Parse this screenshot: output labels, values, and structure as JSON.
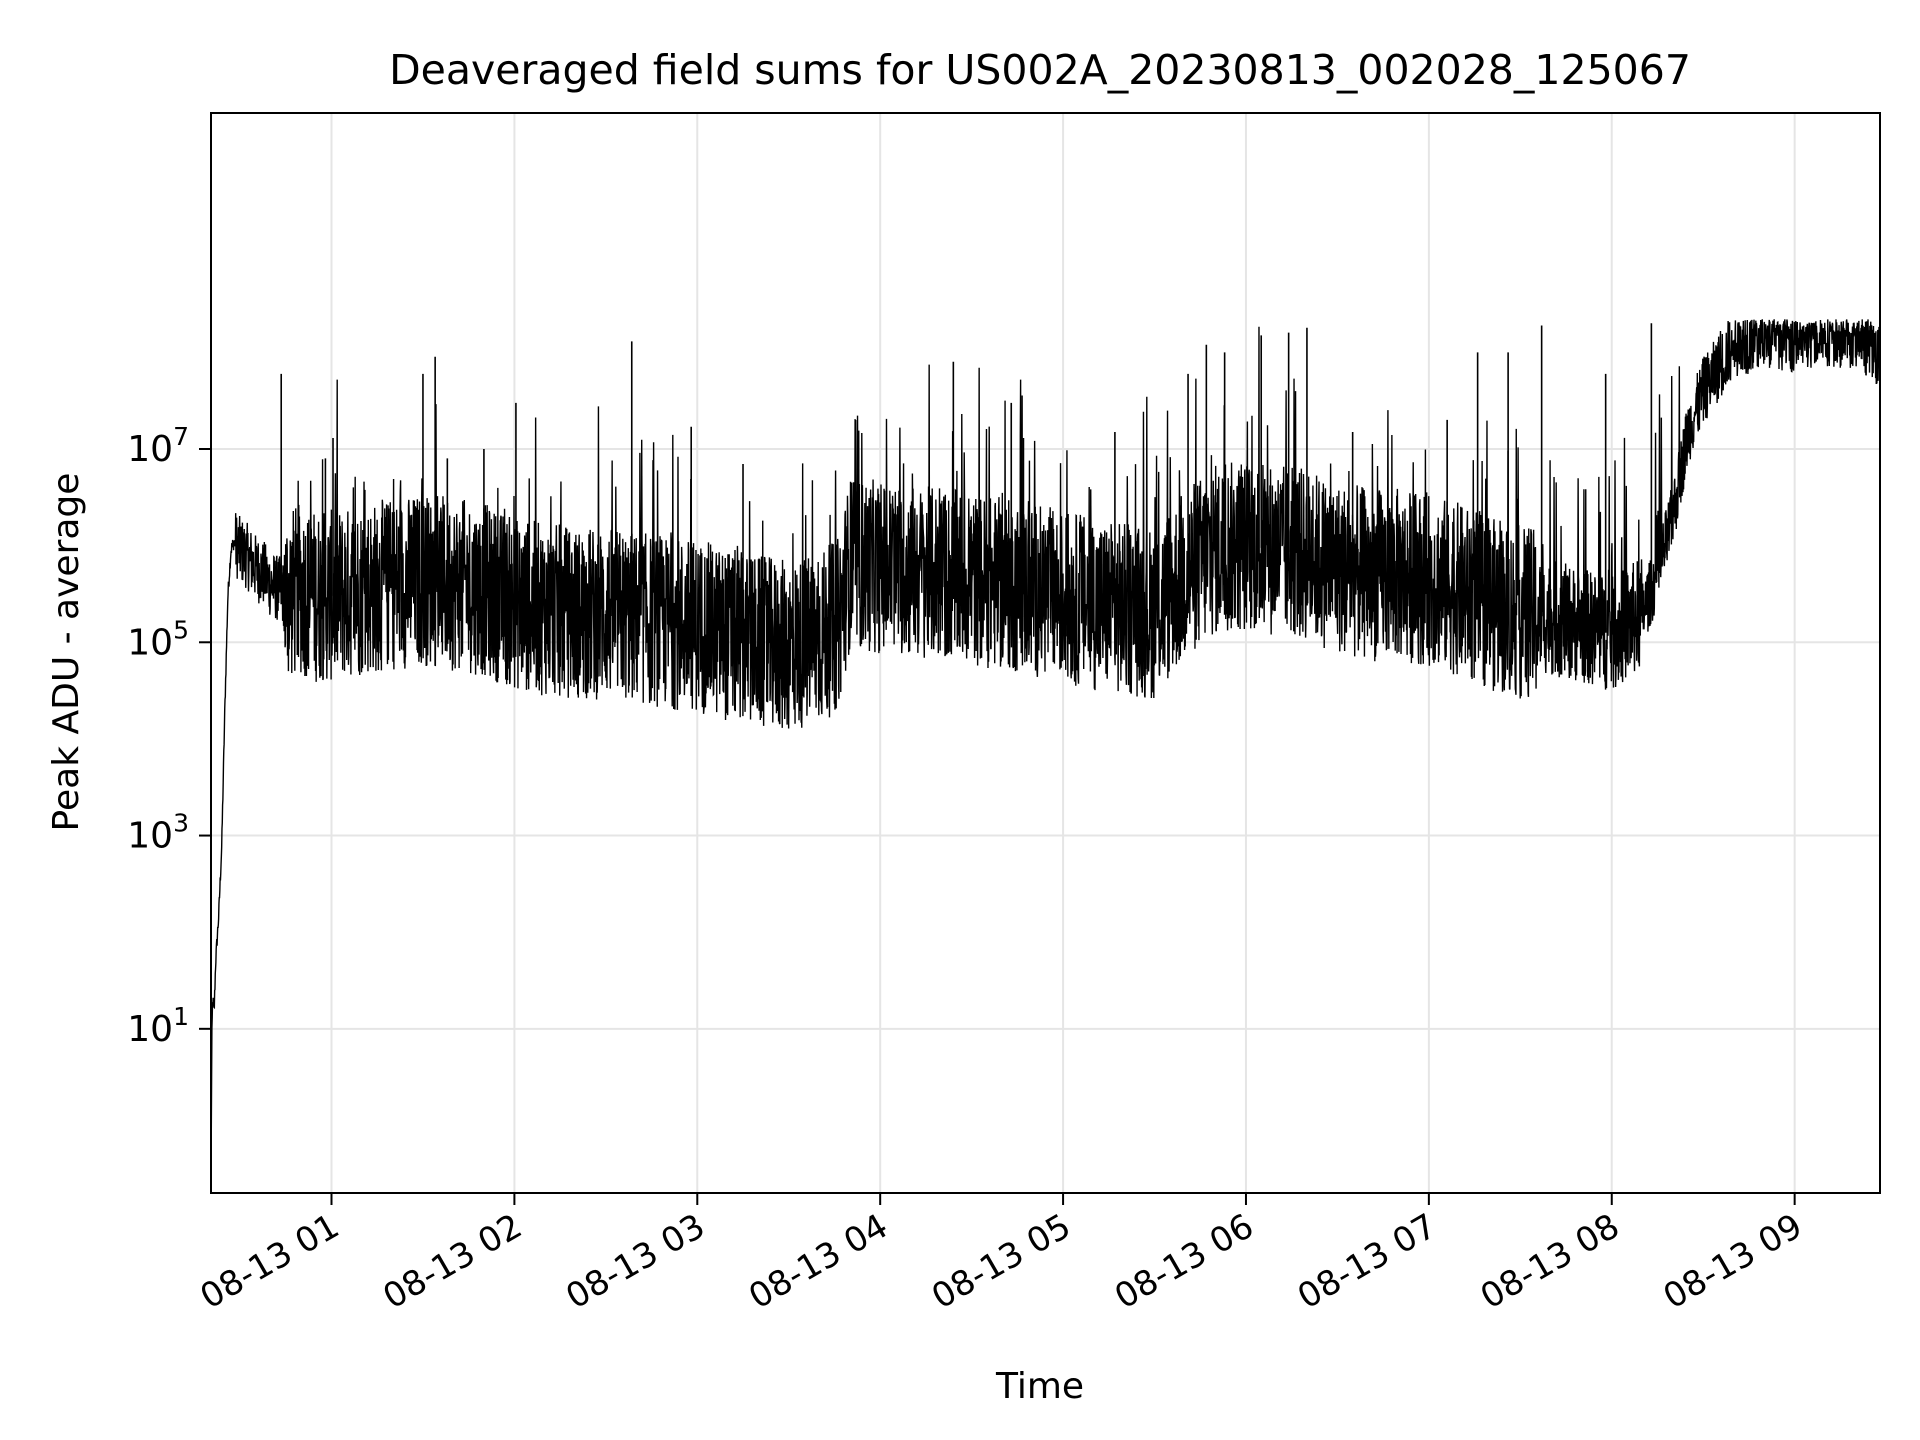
{
  "chart_data": {
    "type": "line",
    "title": "Deaveraged field sums for US002A_20230813_002028_125067",
    "xlabel": "Time",
    "ylabel": "Peak ADU - average",
    "y_scale": "log",
    "ylim": [
      0.2,
      30000000000
    ],
    "xlim": [
      "08-13 00:20:28",
      "08-13 09:28:00"
    ],
    "grid": true,
    "colors": {
      "line": "#000000",
      "grid": "#e5e5e5",
      "axes": "#000000"
    },
    "x_ticks": [
      {
        "value": "08-13 01:00",
        "label": "08-13 01"
      },
      {
        "value": "08-13 02:00",
        "label": "08-13 02"
      },
      {
        "value": "08-13 03:00",
        "label": "08-13 03"
      },
      {
        "value": "08-13 04:00",
        "label": "08-13 04"
      },
      {
        "value": "08-13 05:00",
        "label": "08-13 05"
      },
      {
        "value": "08-13 06:00",
        "label": "08-13 06"
      },
      {
        "value": "08-13 07:00",
        "label": "08-13 07"
      },
      {
        "value": "08-13 08:00",
        "label": "08-13 08"
      },
      {
        "value": "08-13 09:00",
        "label": "08-13 09"
      }
    ],
    "y_ticks": [
      {
        "value": 10,
        "base": "10",
        "exp": "1"
      },
      {
        "value": 1000,
        "base": "10",
        "exp": "3"
      },
      {
        "value": 100000,
        "base": "10",
        "exp": "5"
      },
      {
        "value": 10000000,
        "base": "10",
        "exp": "7"
      }
    ],
    "series": [
      {
        "x": [
          "08-13 00:20:28",
          "08-13 00:20:45",
          "08-13 00:21:00",
          "08-13 00:21:30",
          "08-13 00:22:00",
          "08-13 00:23:00",
          "08-13 00:24:00",
          "08-13 00:25:00",
          "08-13 00:26:00",
          "08-13 00:27:00",
          "08-13 00:28:00",
          "08-13 00:29:00",
          "08-13 00:30:00",
          "08-13 00:32:00",
          "08-13 00:35:00",
          "08-13 00:38:00",
          "08-13 00:40:00",
          "08-13 00:43:00",
          "08-13 00:45:00",
          "08-13 00:50:00",
          "08-13 00:55:00",
          "08-13 01:00:00",
          "08-13 01:10:00",
          "08-13 01:20:00",
          "08-13 01:30:00",
          "08-13 01:40:00",
          "08-13 01:50:00",
          "08-13 02:00:00",
          "08-13 02:10:00",
          "08-13 02:20:00",
          "08-13 02:30:00",
          "08-13 02:40:00",
          "08-13 02:50:00",
          "08-13 03:00:00",
          "08-13 03:10:00",
          "08-13 03:20:00",
          "08-13 03:30:00",
          "08-13 03:40:00",
          "08-13 03:46:00",
          "08-13 03:50:00",
          "08-13 04:00:00",
          "08-13 04:10:00",
          "08-13 04:20:00",
          "08-13 04:30:00",
          "08-13 04:40:00",
          "08-13 04:50:00",
          "08-13 05:00:00",
          "08-13 05:10:00",
          "08-13 05:20:00",
          "08-13 05:30:00",
          "08-13 05:40:00",
          "08-13 05:50:00",
          "08-13 06:00:00",
          "08-13 06:10:00",
          "08-13 06:20:00",
          "08-13 06:30:00",
          "08-13 06:40:00",
          "08-13 06:50:00",
          "08-13 07:00:00",
          "08-13 07:10:00",
          "08-13 07:20:00",
          "08-13 07:30:00",
          "08-13 07:40:00",
          "08-13 07:50:00",
          "08-13 08:00:00",
          "08-13 08:10:00",
          "08-13 08:15:00",
          "08-13 08:20:00",
          "08-13 08:25:00",
          "08-13 08:30:00",
          "08-13 08:40:00",
          "08-13 08:50:00",
          "08-13 09:00:00",
          "08-13 09:10:00",
          "08-13 09:20:00",
          "08-13 09:25:00",
          "08-13 09:28:00"
        ],
        "values": [
          0.3,
          8,
          20,
          15,
          50,
          150,
          800,
          20000,
          300000,
          900000,
          1100000,
          1000000,
          900000,
          800000,
          600000,
          500000,
          400000,
          350000,
          300000,
          350000,
          300000,
          300000,
          350000,
          400000,
          450000,
          400000,
          350000,
          250000,
          220000,
          200000,
          200000,
          180000,
          160000,
          150000,
          120000,
          100000,
          90000,
          110000,
          150000,
          650000,
          600000,
          550000,
          500000,
          450000,
          400000,
          350000,
          300000,
          250000,
          220000,
          200000,
          500000,
          900000,
          1000000,
          900000,
          800000,
          600000,
          500000,
          500000,
          450000,
          350000,
          250000,
          200000,
          180000,
          150000,
          120000,
          200000,
          500000,
          2000000,
          15000000,
          40000000,
          120000000,
          150000000,
          140000000,
          160000000,
          150000000,
          120000000,
          80000000
        ]
      }
    ],
    "spikes": [
      {
        "x": "08-13 00:43:30",
        "value": 60000000
      },
      {
        "x": "08-13 00:58:00",
        "value": 8000000
      },
      {
        "x": "08-13 01:00:30",
        "value": 13000000
      },
      {
        "x": "08-13 01:30:00",
        "value": 60000000
      },
      {
        "x": "08-13 01:34:00",
        "value": 90000000
      },
      {
        "x": "08-13 01:38:00",
        "value": 8000000
      },
      {
        "x": "08-13 01:50:00",
        "value": 10000000
      },
      {
        "x": "08-13 02:00:30",
        "value": 30000000
      },
      {
        "x": "08-13 02:38:30",
        "value": 130000000
      },
      {
        "x": "08-13 02:58:00",
        "value": 17000000
      },
      {
        "x": "08-13 03:15:00",
        "value": 7000000
      },
      {
        "x": "08-13 04:24:00",
        "value": 80000000
      },
      {
        "x": "08-13 04:43:00",
        "value": 30000000
      },
      {
        "x": "08-13 04:47:00",
        "value": 13000000
      },
      {
        "x": "08-13 05:17:00",
        "value": 15000000
      },
      {
        "x": "08-13 05:41:00",
        "value": 60000000
      },
      {
        "x": "08-13 05:47:00",
        "value": 120000000
      },
      {
        "x": "08-13 05:53:00",
        "value": 100000000
      },
      {
        "x": "08-13 06:05:00",
        "value": 150000000
      },
      {
        "x": "08-13 06:14:00",
        "value": 160000000
      },
      {
        "x": "08-13 06:20:00",
        "value": 180000000
      },
      {
        "x": "08-13 06:35:00",
        "value": 15000000
      },
      {
        "x": "08-13 07:06:00",
        "value": 20000000
      },
      {
        "x": "08-13 07:16:00",
        "value": 100000000
      },
      {
        "x": "08-13 07:26:00",
        "value": 100000000
      },
      {
        "x": "08-13 07:37:00",
        "value": 190000000
      },
      {
        "x": "08-13 07:58:00",
        "value": 60000000
      },
      {
        "x": "08-13 08:13:00",
        "value": 200000000
      }
    ]
  }
}
